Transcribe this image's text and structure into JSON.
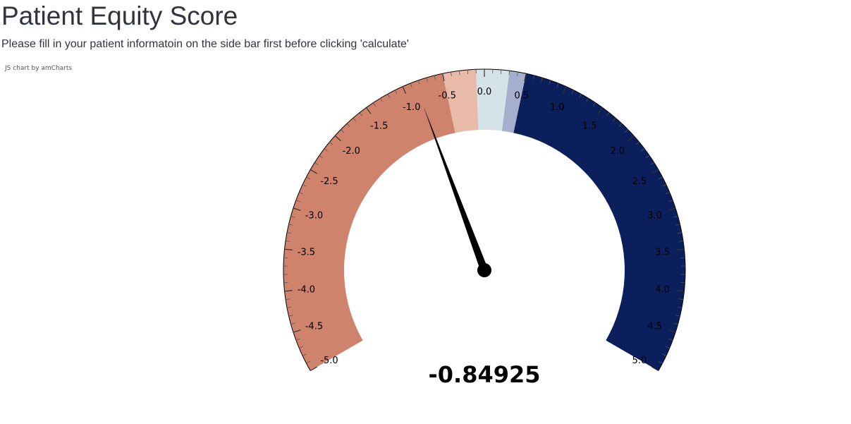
{
  "header": {
    "title": "Patient Equity Score",
    "subtitle": "Please fill in your patient informatoin on the side bar first before clicking 'calculate'",
    "credit": "JS chart by amCharts"
  },
  "chart_data": {
    "type": "gauge",
    "min": -5,
    "max": 5,
    "value": -0.84925,
    "value_label": "-0.84925",
    "tick_labels": [
      "-5.0",
      "-4.5",
      "-4.0",
      "-3.5",
      "-3.0",
      "-2.5",
      "-2.0",
      "-1.5",
      "-1.0",
      "-0.5",
      "0.0",
      "0.5",
      "1.0",
      "1.5",
      "2.0",
      "2.5",
      "3.0",
      "3.5",
      "4.0",
      "4.5",
      "5.0"
    ],
    "bands": [
      {
        "start": -5,
        "end": -0.5,
        "color": "#cf826c"
      },
      {
        "start": -0.5,
        "end": -0.1,
        "color": "#e8bba8"
      },
      {
        "start": -0.1,
        "end": 0.3,
        "color": "#d5e2e8"
      },
      {
        "start": 0.3,
        "end": 0.5,
        "color": "#a5aecc"
      },
      {
        "start": 0.5,
        "end": 5,
        "color": "#0b1f5c"
      }
    ]
  }
}
